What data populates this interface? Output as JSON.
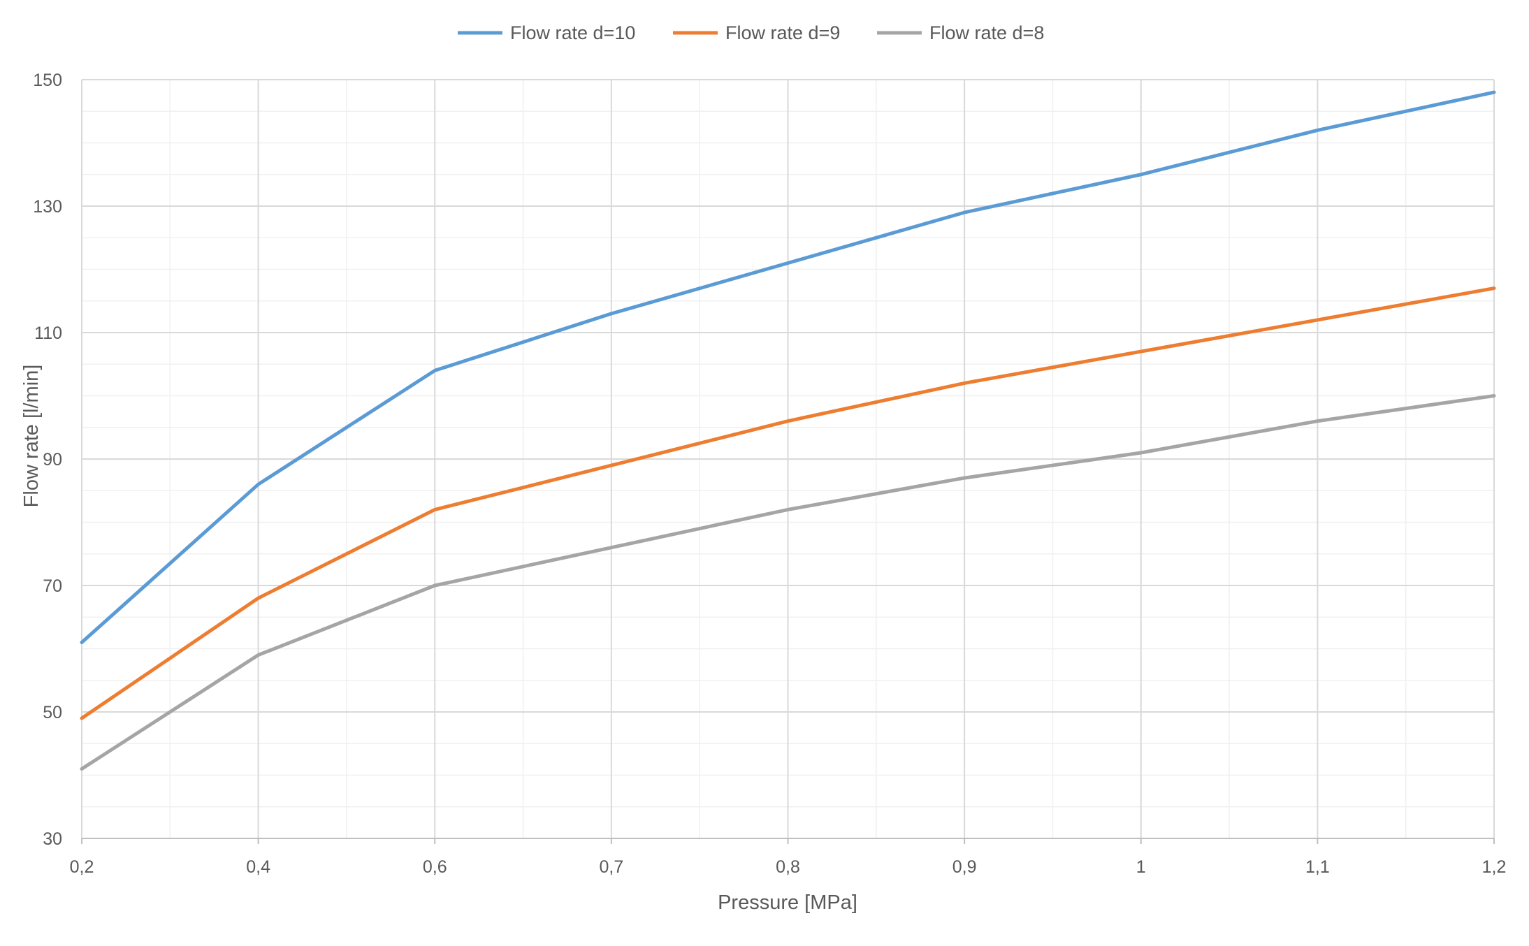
{
  "chart_data": {
    "type": "line",
    "x": [
      "0,2",
      "0,4",
      "0,6",
      "0,7",
      "0,8",
      "0,9",
      "1",
      "1,1",
      "1,2"
    ],
    "series": [
      {
        "name": "Flow rate d=10",
        "color": "#5b9bd5",
        "values": [
          61,
          86,
          104,
          113,
          121,
          129,
          135,
          142,
          148
        ]
      },
      {
        "name": "Flow rate d=9",
        "color": "#ed7d31",
        "values": [
          49,
          68,
          82,
          89,
          96,
          102,
          107,
          112,
          117
        ]
      },
      {
        "name": "Flow rate d=8",
        "color": "#a5a5a5",
        "values": [
          41,
          59,
          70,
          76,
          82,
          87,
          91,
          96,
          100
        ]
      }
    ],
    "xlabel": "Pressure [MPa]",
    "ylabel": "Flow rate  [l/min]",
    "ylim": [
      30,
      150
    ],
    "yticks": [
      "30",
      "50",
      "70",
      "90",
      "110",
      "130",
      "150"
    ],
    "grid": true,
    "legend": "top-center"
  }
}
